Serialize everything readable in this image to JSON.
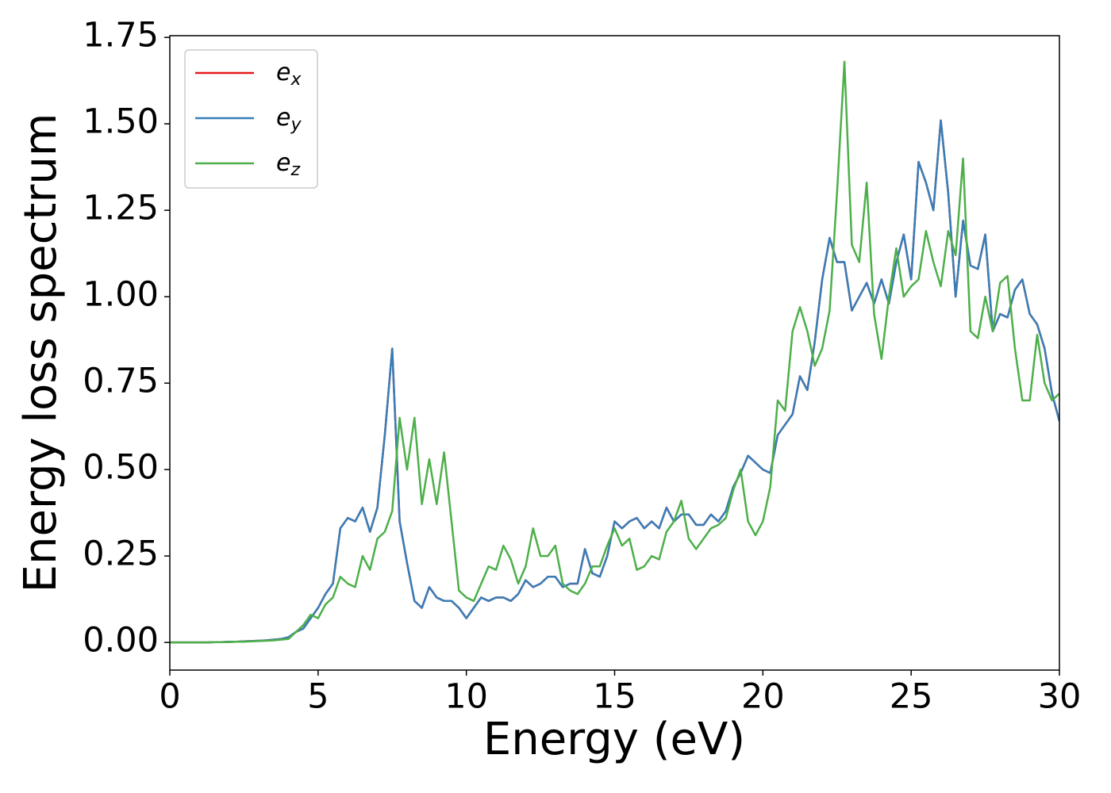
{
  "chart_data": {
    "type": "line",
    "xlabel": "Energy (eV)",
    "ylabel": "Energy loss spectrum",
    "x": [
      0,
      0.25,
      0.5,
      0.75,
      1,
      1.25,
      1.5,
      1.75,
      2,
      2.25,
      2.5,
      2.75,
      3,
      3.25,
      3.5,
      3.75,
      4,
      4.25,
      4.5,
      4.75,
      5,
      5.25,
      5.5,
      5.75,
      6,
      6.25,
      6.5,
      6.75,
      7,
      7.25,
      7.5,
      7.75,
      8,
      8.25,
      8.5,
      8.75,
      9,
      9.25,
      9.5,
      9.75,
      10,
      10.25,
      10.5,
      10.75,
      11,
      11.25,
      11.5,
      11.75,
      12,
      12.25,
      12.5,
      12.75,
      13,
      13.25,
      13.5,
      13.75,
      14,
      14.25,
      14.5,
      14.75,
      15,
      15.25,
      15.5,
      15.75,
      16,
      16.25,
      16.5,
      16.75,
      17,
      17.25,
      17.5,
      17.75,
      18,
      18.25,
      18.5,
      18.75,
      19,
      19.25,
      19.5,
      19.75,
      20,
      20.25,
      20.5,
      20.75,
      21,
      21.25,
      21.5,
      21.75,
      22,
      22.25,
      22.5,
      22.75,
      23,
      23.25,
      23.5,
      23.75,
      24,
      24.25,
      24.5,
      24.75,
      25,
      25.25,
      25.5,
      25.75,
      26,
      26.25,
      26.5,
      26.75,
      27,
      27.25,
      27.5,
      27.75,
      28,
      28.25,
      28.5,
      28.75,
      29,
      29.25,
      29.5,
      29.75,
      30
    ],
    "series": [
      {
        "name": "e_x",
        "color": "#e41a1c",
        "values": [
          0,
          0,
          0,
          0,
          0,
          0,
          0.001,
          0.001,
          0.002,
          0.002,
          0.003,
          0.004,
          0.005,
          0.006,
          0.008,
          0.01,
          0.015,
          0.03,
          0.04,
          0.07,
          0.1,
          0.14,
          0.17,
          0.33,
          0.36,
          0.35,
          0.39,
          0.32,
          0.39,
          0.6,
          0.85,
          0.35,
          0.23,
          0.12,
          0.1,
          0.16,
          0.13,
          0.12,
          0.12,
          0.1,
          0.07,
          0.1,
          0.13,
          0.12,
          0.13,
          0.13,
          0.12,
          0.14,
          0.18,
          0.16,
          0.17,
          0.19,
          0.19,
          0.16,
          0.17,
          0.17,
          0.27,
          0.2,
          0.19,
          0.25,
          0.35,
          0.33,
          0.35,
          0.36,
          0.33,
          0.35,
          0.33,
          0.39,
          0.35,
          0.37,
          0.37,
          0.34,
          0.34,
          0.37,
          0.35,
          0.38,
          0.45,
          0.49,
          0.54,
          0.52,
          0.5,
          0.49,
          0.6,
          0.63,
          0.66,
          0.77,
          0.73,
          0.87,
          1.05,
          1.17,
          1.1,
          1.1,
          0.96,
          1.0,
          1.04,
          0.98,
          1.05,
          0.98,
          1.1,
          1.18,
          1.05,
          1.39,
          1.33,
          1.25,
          1.51,
          1.3,
          1.0,
          1.22,
          1.09,
          1.08,
          1.18,
          0.9,
          0.95,
          0.94,
          1.02,
          1.05,
          0.95,
          0.92,
          0.85,
          0.72,
          0.64
        ]
      },
      {
        "name": "e_y",
        "color": "#377eb8",
        "values": [
          0,
          0,
          0,
          0,
          0,
          0,
          0.001,
          0.001,
          0.002,
          0.002,
          0.003,
          0.004,
          0.005,
          0.006,
          0.008,
          0.01,
          0.015,
          0.03,
          0.04,
          0.07,
          0.1,
          0.14,
          0.17,
          0.33,
          0.36,
          0.35,
          0.39,
          0.32,
          0.39,
          0.6,
          0.85,
          0.35,
          0.23,
          0.12,
          0.1,
          0.16,
          0.13,
          0.12,
          0.12,
          0.1,
          0.07,
          0.1,
          0.13,
          0.12,
          0.13,
          0.13,
          0.12,
          0.14,
          0.18,
          0.16,
          0.17,
          0.19,
          0.19,
          0.16,
          0.17,
          0.17,
          0.27,
          0.2,
          0.19,
          0.25,
          0.35,
          0.33,
          0.35,
          0.36,
          0.33,
          0.35,
          0.33,
          0.39,
          0.35,
          0.37,
          0.37,
          0.34,
          0.34,
          0.37,
          0.35,
          0.38,
          0.45,
          0.49,
          0.54,
          0.52,
          0.5,
          0.49,
          0.6,
          0.63,
          0.66,
          0.77,
          0.73,
          0.87,
          1.05,
          1.17,
          1.1,
          1.1,
          0.96,
          1.0,
          1.04,
          0.98,
          1.05,
          0.98,
          1.1,
          1.18,
          1.05,
          1.39,
          1.33,
          1.25,
          1.51,
          1.3,
          1.0,
          1.22,
          1.09,
          1.08,
          1.18,
          0.9,
          0.95,
          0.94,
          1.02,
          1.05,
          0.95,
          0.92,
          0.85,
          0.72,
          0.64
        ]
      },
      {
        "name": "e_z",
        "color": "#4daf4a",
        "values": [
          0,
          0,
          0,
          0,
          0,
          0,
          0.001,
          0.001,
          0.001,
          0.002,
          0.002,
          0.003,
          0.004,
          0.005,
          0.006,
          0.008,
          0.01,
          0.03,
          0.05,
          0.08,
          0.07,
          0.11,
          0.13,
          0.19,
          0.17,
          0.16,
          0.25,
          0.21,
          0.3,
          0.32,
          0.38,
          0.65,
          0.5,
          0.65,
          0.4,
          0.53,
          0.4,
          0.55,
          0.35,
          0.15,
          0.13,
          0.12,
          0.17,
          0.22,
          0.21,
          0.28,
          0.24,
          0.17,
          0.22,
          0.33,
          0.25,
          0.25,
          0.28,
          0.17,
          0.15,
          0.14,
          0.17,
          0.22,
          0.22,
          0.28,
          0.33,
          0.28,
          0.3,
          0.21,
          0.22,
          0.25,
          0.24,
          0.32,
          0.35,
          0.41,
          0.3,
          0.27,
          0.3,
          0.33,
          0.34,
          0.36,
          0.44,
          0.5,
          0.35,
          0.31,
          0.35,
          0.45,
          0.7,
          0.67,
          0.9,
          0.97,
          0.9,
          0.8,
          0.85,
          0.96,
          1.3,
          1.68,
          1.15,
          1.1,
          1.33,
          0.95,
          0.82,
          1.0,
          1.14,
          1.0,
          1.03,
          1.05,
          1.19,
          1.1,
          1.03,
          1.19,
          1.12,
          1.4,
          0.9,
          0.88,
          1.0,
          0.9,
          1.04,
          1.06,
          0.85,
          0.7,
          0.7,
          0.89,
          0.75,
          0.7,
          0.72
        ]
      }
    ],
    "xlim": [
      0,
      30
    ],
    "xticks": [
      0,
      5,
      10,
      15,
      20,
      25,
      30
    ],
    "ylim": [
      -0.08,
      1.755
    ],
    "yticks": [
      {
        "value": 0,
        "label": "0.00"
      },
      0.25,
      {
        "value": 0.5,
        "label": "0.50"
      },
      0.75,
      {
        "value": 1,
        "label": "1.00"
      },
      1.25,
      {
        "value": 1.5,
        "label": "1.50"
      },
      1.75
    ],
    "grid": false,
    "legend": "upper left"
  }
}
